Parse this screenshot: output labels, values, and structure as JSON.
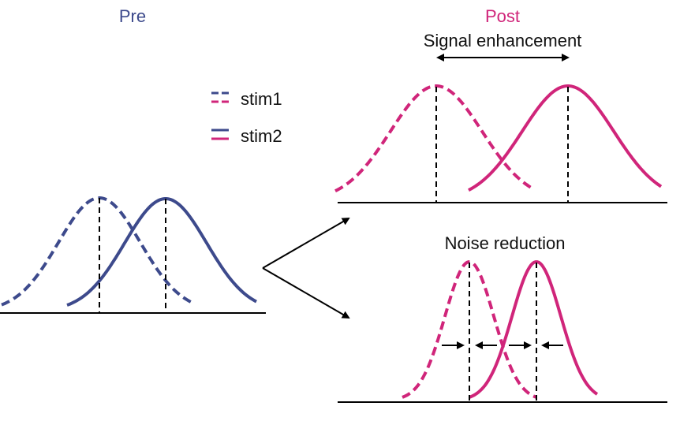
{
  "pre": {
    "title": "Pre",
    "color": "#3d4a8c"
  },
  "post": {
    "title": "Post",
    "color": "#d0257a"
  },
  "legend": {
    "items": [
      {
        "label": "stim1",
        "style": "dashed"
      },
      {
        "label": "stim2",
        "style": "solid"
      }
    ]
  },
  "signal_panel": {
    "label": "Signal enhancement"
  },
  "noise_panel": {
    "label": "Noise reduction"
  },
  "colors": {
    "axis": "#000000",
    "arrow": "#000000",
    "text": "#111111"
  }
}
